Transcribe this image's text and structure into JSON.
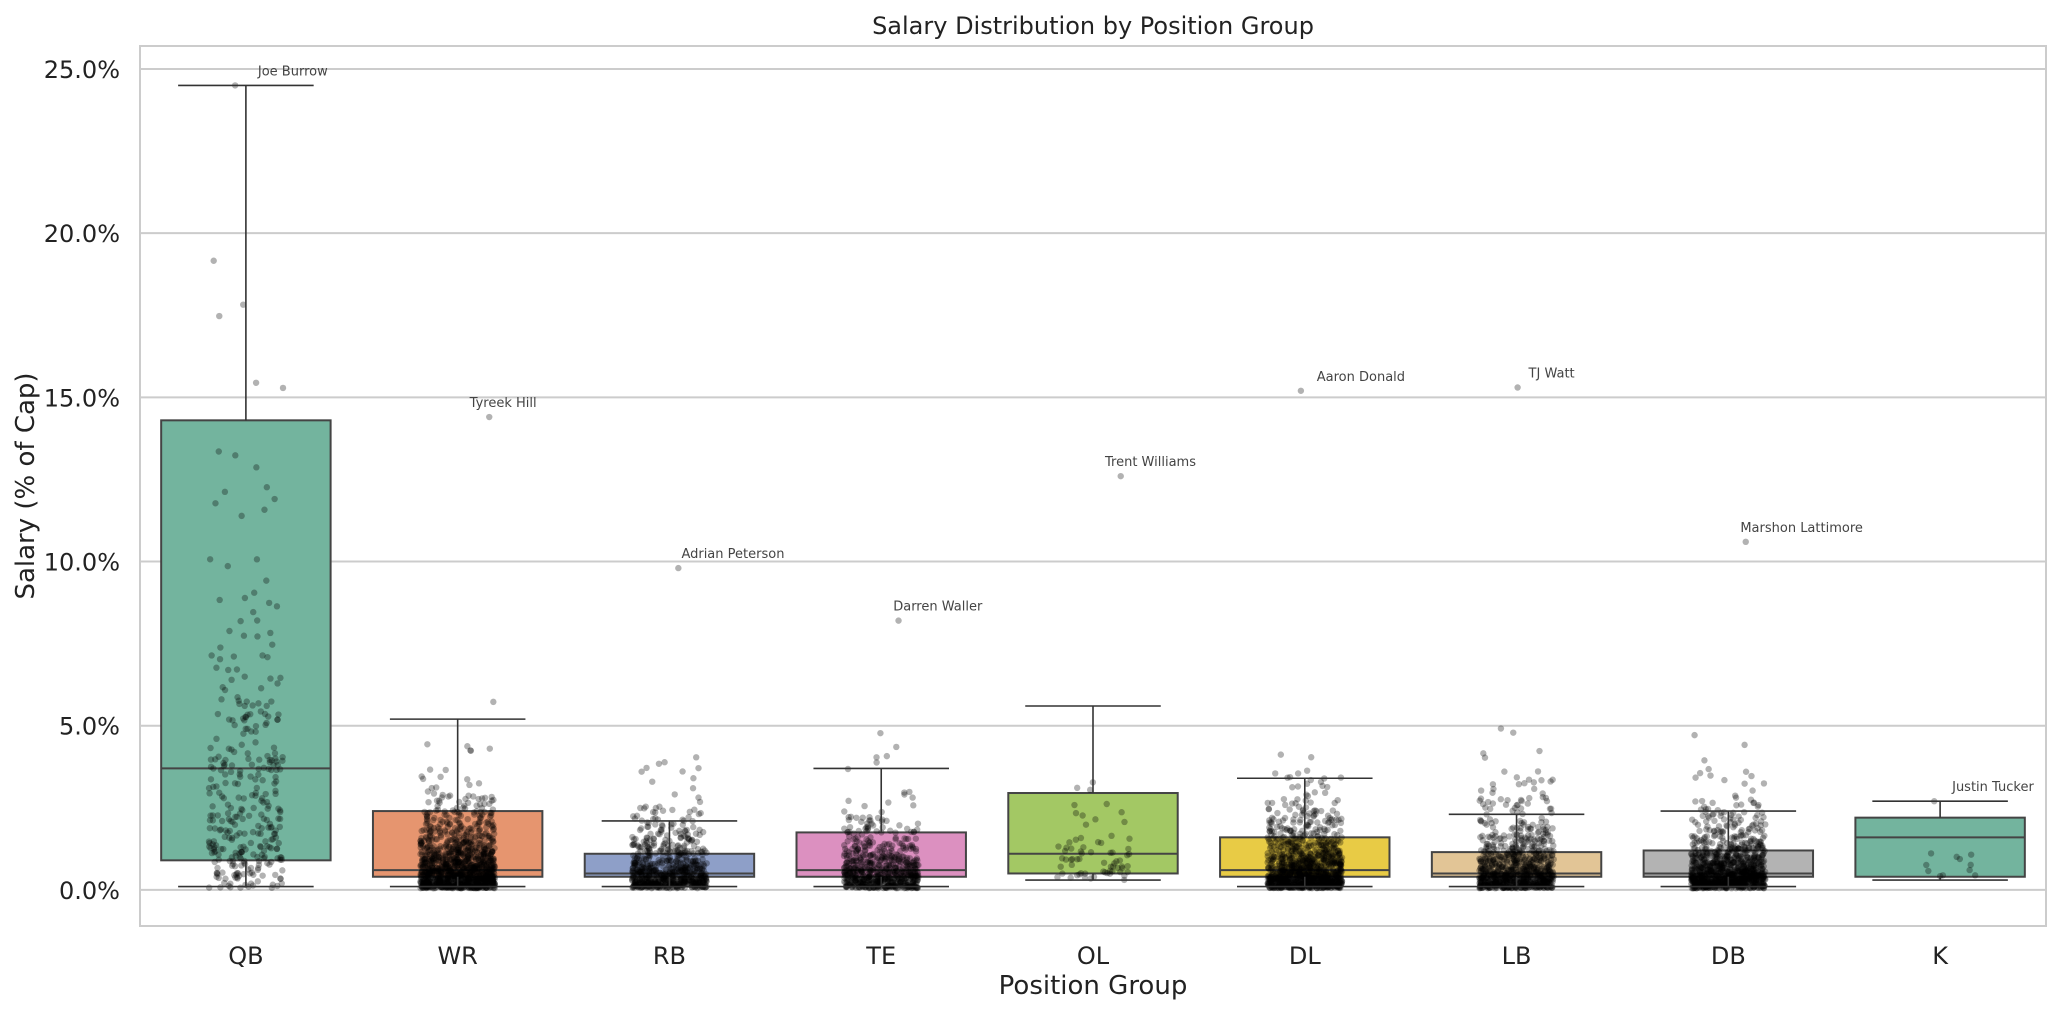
{
  "chart_data": {
    "type": "box",
    "title": "Salary Distribution by Position Group",
    "xlabel": "Position Group",
    "ylabel": "Salary (% of Cap)",
    "ylim": [
      -1.1,
      25.7
    ],
    "yticks": [
      0,
      5,
      10,
      15,
      20,
      25
    ],
    "ytick_labels": [
      "0.0%",
      "5.0%",
      "10.0%",
      "15.0%",
      "20.0%",
      "25.0%"
    ],
    "grid": "horizontal",
    "categories": [
      "QB",
      "WR",
      "RB",
      "TE",
      "OL",
      "DL",
      "LB",
      "DB",
      "K"
    ],
    "colors": [
      "#73b49e",
      "#e6956f",
      "#8e9fc8",
      "#dc90c0",
      "#a3c864",
      "#e8cb45",
      "#e2c596",
      "#b3b3b3",
      "#73b49e"
    ],
    "boxes": [
      {
        "category": "QB",
        "whisker_low": 0.1,
        "q1": 0.9,
        "median": 3.7,
        "q3": 14.3,
        "whisker_high": 24.5
      },
      {
        "category": "WR",
        "whisker_low": 0.1,
        "q1": 0.4,
        "median": 0.6,
        "q3": 2.4,
        "whisker_high": 5.2
      },
      {
        "category": "RB",
        "whisker_low": 0.1,
        "q1": 0.4,
        "median": 0.5,
        "q3": 1.1,
        "whisker_high": 2.1
      },
      {
        "category": "TE",
        "whisker_low": 0.1,
        "q1": 0.4,
        "median": 0.6,
        "q3": 1.75,
        "whisker_high": 3.7
      },
      {
        "category": "OL",
        "whisker_low": 0.3,
        "q1": 0.5,
        "median": 1.1,
        "q3": 2.95,
        "whisker_high": 5.6
      },
      {
        "category": "DL",
        "whisker_low": 0.1,
        "q1": 0.4,
        "median": 0.6,
        "q3": 1.6,
        "whisker_high": 3.4
      },
      {
        "category": "LB",
        "whisker_low": 0.1,
        "q1": 0.4,
        "median": 0.5,
        "q3": 1.15,
        "whisker_high": 2.3
      },
      {
        "category": "DB",
        "whisker_low": 0.1,
        "q1": 0.4,
        "median": 0.5,
        "q3": 1.2,
        "whisker_high": 2.4
      },
      {
        "category": "K",
        "whisker_low": 0.3,
        "q1": 0.4,
        "median": 1.6,
        "q3": 2.2,
        "whisker_high": 2.7
      }
    ],
    "point_distribution": [
      {
        "category": "QB",
        "count": 330,
        "min": 0.05,
        "max": 24.5,
        "scale": 6.5
      },
      {
        "category": "WR",
        "count": 1200,
        "min": 0.05,
        "max": 14.4,
        "scale": 1.6
      },
      {
        "category": "RB",
        "count": 700,
        "min": 0.05,
        "max": 9.8,
        "scale": 1.3
      },
      {
        "category": "TE",
        "count": 650,
        "min": 0.05,
        "max": 8.2,
        "scale": 1.3
      },
      {
        "category": "OL",
        "count": 70,
        "min": 0.3,
        "max": 12.6,
        "scale": 1.6
      },
      {
        "category": "DL",
        "count": 1100,
        "min": 0.05,
        "max": 15.2,
        "scale": 1.5
      },
      {
        "category": "LB",
        "count": 850,
        "min": 0.05,
        "max": 15.3,
        "scale": 1.4
      },
      {
        "category": "DB",
        "count": 1000,
        "min": 0.05,
        "max": 10.6,
        "scale": 1.4
      },
      {
        "category": "K",
        "count": 12,
        "min": 0.3,
        "max": 2.7,
        "scale": 1.4
      }
    ],
    "annotations": [
      {
        "category": "QB",
        "label": "Joe Burrow",
        "value": 24.5
      },
      {
        "category": "WR",
        "label": "Tyreek Hill",
        "value": 14.4
      },
      {
        "category": "RB",
        "label": "Adrian Peterson",
        "value": 9.8
      },
      {
        "category": "TE",
        "label": "Darren Waller",
        "value": 8.2
      },
      {
        "category": "OL",
        "label": "Trent Williams",
        "value": 12.6
      },
      {
        "category": "DL",
        "label": "Aaron Donald",
        "value": 15.2
      },
      {
        "category": "LB",
        "label": "TJ Watt",
        "value": 15.3
      },
      {
        "category": "DB",
        "label": "Marshon Lattimore",
        "value": 10.6
      },
      {
        "category": "K",
        "label": "Justin Tucker",
        "value": 2.7
      }
    ]
  }
}
